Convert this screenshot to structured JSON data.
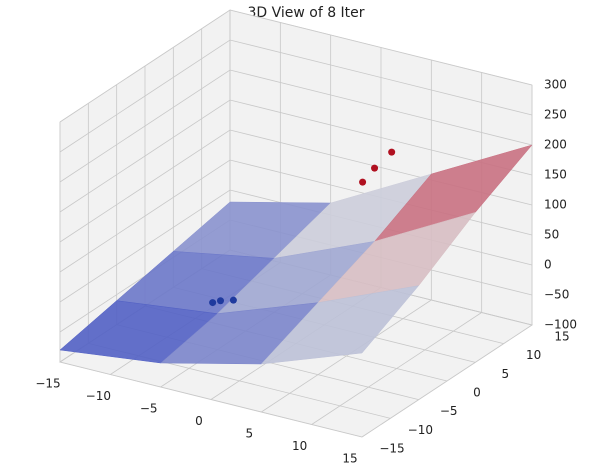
{
  "chart_data": {
    "type": "surface3d",
    "title": "3D View of 8 Iter",
    "xlim": [
      -15,
      15
    ],
    "ylim": [
      -15,
      15
    ],
    "zlim": [
      -100,
      300
    ],
    "xticks": [
      {
        "value": -15,
        "label": "−15"
      },
      {
        "value": -10,
        "label": "−10"
      },
      {
        "value": -5,
        "label": "−5"
      },
      0,
      5,
      10,
      15
    ],
    "yticks": [
      {
        "value": -15,
        "label": "−15"
      },
      {
        "value": -10,
        "label": "−10"
      },
      {
        "value": -5,
        "label": "−5"
      },
      0,
      5,
      10,
      15
    ],
    "zticks": [
      {
        "value": -100,
        "label": "−100"
      },
      {
        "value": -50,
        "label": "−50"
      },
      0,
      50,
      100,
      150,
      200,
      250,
      300
    ],
    "grid": true,
    "surface": {
      "x": [
        -15,
        -5,
        5,
        15
      ],
      "y": [
        -15,
        -5,
        5,
        15
      ],
      "z": [
        [
          -80,
          -60,
          -20,
          40
        ],
        [
          -60,
          -40,
          20,
          90
        ],
        [
          -40,
          -10,
          60,
          150
        ],
        [
          -20,
          20,
          110,
          200
        ]
      ]
    },
    "scatter": {
      "x": [
        -7.5,
        -6.5,
        -8,
        4.2,
        5,
        2.9
      ],
      "y": [
        0,
        0.5,
        -0.5,
        6.4,
        8,
        6.6
      ],
      "z": [
        -60,
        -58,
        -62,
        170,
        190,
        140
      ]
    }
  }
}
